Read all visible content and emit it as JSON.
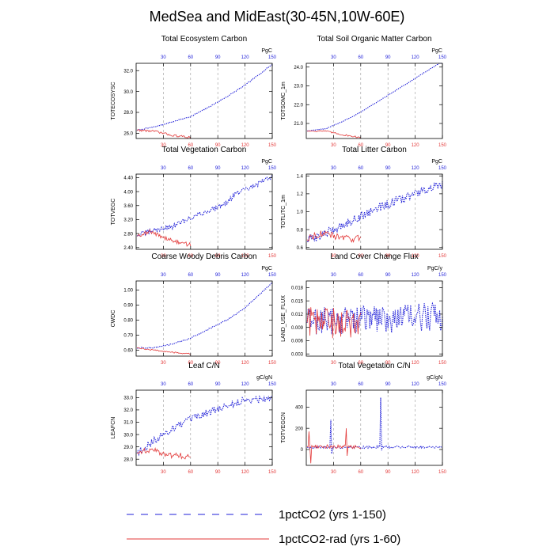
{
  "figure": {
    "title": "MedSea and MidEast(30-45N,10W-60E)",
    "legend": [
      {
        "label": "1pctCO2 (yrs 1-150)",
        "color": "#1f1fd8",
        "style": "dashed"
      },
      {
        "label": "1pctCO2-rad (yrs 1-60)",
        "color": "#e33a3a",
        "style": "solid"
      }
    ]
  },
  "colors": {
    "series_a": "#1f1fd8",
    "series_b": "#e33a3a",
    "grid": "#9a9a9a",
    "axis": "#000000"
  },
  "chart_data": [
    {
      "type": "line",
      "title": "Total Ecosystem Carbon",
      "ylabel": "TOTECOSYSC",
      "unit": "PgC",
      "xlim": [
        0,
        150
      ],
      "ylim": [
        25.5,
        32.7
      ],
      "yticks": [
        26.0,
        28.0,
        30.0,
        32.0
      ],
      "ytick_labels": [
        "26.0",
        "28.0",
        "30.0",
        "32.0"
      ],
      "xticks": [
        30,
        60,
        90,
        120,
        150
      ],
      "series": [
        {
          "name": "1pctCO2 (yrs 1-150)",
          "x_range": [
            1,
            150
          ],
          "anchors": [
            [
              1,
              26.3
            ],
            [
              20,
              26.6
            ],
            [
              40,
              27.1
            ],
            [
              60,
              27.6
            ],
            [
              80,
              28.5
            ],
            [
              100,
              29.5
            ],
            [
              120,
              30.6
            ],
            [
              150,
              32.6
            ]
          ],
          "noise": 0.05
        },
        {
          "name": "1pctCO2-rad (yrs 1-60)",
          "x_range": [
            1,
            60
          ],
          "anchors": [
            [
              1,
              26.3
            ],
            [
              20,
              26.2
            ],
            [
              40,
              25.8
            ],
            [
              60,
              25.6
            ]
          ],
          "noise": 0.1
        }
      ]
    },
    {
      "type": "line",
      "title": "Total Soil Organic Matter Carbon",
      "ylabel": "TOTSOMC_1m",
      "unit": "PgC",
      "xlim": [
        0,
        150
      ],
      "ylim": [
        20.2,
        24.2
      ],
      "yticks": [
        21.0,
        22.0,
        23.0,
        24.0
      ],
      "ytick_labels": [
        "21.0",
        "22.0",
        "23.0",
        "24.0"
      ],
      "xticks": [
        30,
        60,
        90,
        120,
        150
      ],
      "series": [
        {
          "name": "1pctCO2 (yrs 1-150)",
          "x_range": [
            1,
            150
          ],
          "anchors": [
            [
              1,
              20.6
            ],
            [
              20,
              20.7
            ],
            [
              40,
              21.1
            ],
            [
              60,
              21.6
            ],
            [
              80,
              22.2
            ],
            [
              100,
              22.8
            ],
            [
              120,
              23.4
            ],
            [
              150,
              24.3
            ]
          ],
          "noise": 0.02
        },
        {
          "name": "1pctCO2-rad (yrs 1-60)",
          "x_range": [
            1,
            60
          ],
          "anchors": [
            [
              1,
              20.6
            ],
            [
              20,
              20.6
            ],
            [
              40,
              20.4
            ],
            [
              60,
              20.25
            ]
          ],
          "noise": 0.04
        }
      ]
    },
    {
      "type": "line",
      "title": "Total Vegetation Carbon",
      "ylabel": "TOTVEGC",
      "unit": "PgC",
      "xlim": [
        0,
        150
      ],
      "ylim": [
        2.35,
        4.5
      ],
      "yticks": [
        2.4,
        2.8,
        3.2,
        3.6,
        4.0,
        4.4
      ],
      "ytick_labels": [
        "2.40",
        "2.80",
        "3.20",
        "3.60",
        "4.00",
        "4.40"
      ],
      "xticks": [
        30,
        60,
        90,
        120,
        150
      ],
      "series": [
        {
          "name": "1pctCO2 (yrs 1-150)",
          "x_range": [
            1,
            150
          ],
          "anchors": [
            [
              1,
              2.75
            ],
            [
              20,
              2.9
            ],
            [
              40,
              3.0
            ],
            [
              60,
              3.25
            ],
            [
              80,
              3.45
            ],
            [
              100,
              3.7
            ],
            [
              110,
              3.95
            ],
            [
              130,
              4.15
            ],
            [
              150,
              4.45
            ]
          ],
          "noise": 0.07
        },
        {
          "name": "1pctCO2-rad (yrs 1-60)",
          "x_range": [
            1,
            60
          ],
          "anchors": [
            [
              1,
              2.75
            ],
            [
              15,
              2.85
            ],
            [
              30,
              2.7
            ],
            [
              45,
              2.55
            ],
            [
              60,
              2.48
            ]
          ],
          "noise": 0.06
        }
      ]
    },
    {
      "type": "line",
      "title": "Total Litter Carbon",
      "ylabel": "TOTLITC_1m",
      "unit": "PgC",
      "xlim": [
        0,
        150
      ],
      "ylim": [
        0.58,
        1.42
      ],
      "yticks": [
        0.6,
        0.8,
        1.0,
        1.2,
        1.4
      ],
      "ytick_labels": [
        "0.6",
        "0.8",
        "1.0",
        "1.2",
        "1.4"
      ],
      "xticks": [
        30,
        60,
        90,
        120,
        150
      ],
      "series": [
        {
          "name": "1pctCO2 (yrs 1-150)",
          "x_range": [
            1,
            150
          ],
          "anchors": [
            [
              1,
              0.68
            ],
            [
              20,
              0.75
            ],
            [
              40,
              0.85
            ],
            [
              60,
              0.95
            ],
            [
              80,
              1.05
            ],
            [
              100,
              1.12
            ],
            [
              120,
              1.2
            ],
            [
              150,
              1.3
            ]
          ],
          "noise": 0.05
        },
        {
          "name": "1pctCO2-rad (yrs 1-60)",
          "x_range": [
            1,
            60
          ],
          "anchors": [
            [
              1,
              0.7
            ],
            [
              15,
              0.76
            ],
            [
              30,
              0.73
            ],
            [
              45,
              0.7
            ],
            [
              60,
              0.7
            ]
          ],
          "noise": 0.04
        }
      ]
    },
    {
      "type": "line",
      "title": "Coarse Woody Debris Carbon",
      "ylabel": "CWDC",
      "unit": "PgC",
      "xlim": [
        0,
        150
      ],
      "ylim": [
        0.56,
        1.06
      ],
      "yticks": [
        0.6,
        0.7,
        0.8,
        0.9,
        1.0
      ],
      "ytick_labels": [
        "0.60",
        "0.70",
        "0.80",
        "0.90",
        "1.00"
      ],
      "xticks": [
        30,
        60,
        90,
        120,
        150
      ],
      "series": [
        {
          "name": "1pctCO2 (yrs 1-150)",
          "x_range": [
            1,
            150
          ],
          "anchors": [
            [
              1,
              0.615
            ],
            [
              20,
              0.615
            ],
            [
              40,
              0.64
            ],
            [
              60,
              0.68
            ],
            [
              80,
              0.74
            ],
            [
              100,
              0.8
            ],
            [
              120,
              0.88
            ],
            [
              150,
              1.05
            ]
          ],
          "noise": 0.004
        },
        {
          "name": "1pctCO2-rad (yrs 1-60)",
          "x_range": [
            1,
            60
          ],
          "anchors": [
            [
              1,
              0.615
            ],
            [
              20,
              0.6
            ],
            [
              40,
              0.585
            ],
            [
              60,
              0.575
            ]
          ],
          "noise": 0.004
        }
      ]
    },
    {
      "type": "line",
      "title": "Land Cover Change Flux",
      "ylabel": "LAND_USE_FLUX",
      "unit": "PgC/y",
      "xlim": [
        0,
        150
      ],
      "ylim": [
        0.0025,
        0.0195
      ],
      "yticks": [
        0.003,
        0.006,
        0.009,
        0.012,
        0.015,
        0.018
      ],
      "ytick_labels": [
        "0.003",
        "0.006",
        "0.009",
        "0.012",
        "0.015",
        "0.018"
      ],
      "xticks": [
        30,
        60,
        90,
        120,
        150
      ],
      "series": [
        {
          "name": "1pctCO2 (yrs 1-150)",
          "x_range": [
            1,
            150
          ],
          "anchors": [
            [
              1,
              0.0105
            ],
            [
              150,
              0.0115
            ]
          ],
          "noise": 0.0033
        },
        {
          "name": "1pctCO2-rad (yrs 1-60)",
          "x_range": [
            1,
            60
          ],
          "anchors": [
            [
              1,
              0.0105
            ],
            [
              60,
              0.0095
            ]
          ],
          "noise": 0.0035
        }
      ]
    },
    {
      "type": "line",
      "title": "Leaf C/N",
      "ylabel": "LEAFCN",
      "unit": "gC/gN",
      "xlim": [
        0,
        150
      ],
      "ylim": [
        27.5,
        33.6
      ],
      "yticks": [
        28.0,
        29.0,
        30.0,
        31.0,
        32.0,
        33.0
      ],
      "ytick_labels": [
        "28.0",
        "29.0",
        "30.0",
        "31.0",
        "32.0",
        "33.0"
      ],
      "xticks": [
        30,
        60,
        90,
        120,
        150
      ],
      "series": [
        {
          "name": "1pctCO2 (yrs 1-150)",
          "x_range": [
            1,
            150
          ],
          "anchors": [
            [
              1,
              28.5
            ],
            [
              20,
              29.5
            ],
            [
              40,
              30.5
            ],
            [
              60,
              31.2
            ],
            [
              80,
              31.8
            ],
            [
              100,
              32.3
            ],
            [
              120,
              32.8
            ],
            [
              150,
              33.0
            ]
          ],
          "noise": 0.3
        },
        {
          "name": "1pctCO2-rad (yrs 1-60)",
          "x_range": [
            1,
            60
          ],
          "anchors": [
            [
              1,
              28.5
            ],
            [
              15,
              28.8
            ],
            [
              30,
              28.4
            ],
            [
              45,
              28.3
            ],
            [
              60,
              28.2
            ]
          ],
          "noise": 0.25
        }
      ]
    },
    {
      "type": "line",
      "title": "Total Vegetation C/N",
      "ylabel": "TOTVEGCN",
      "unit": "gC/gN",
      "xlim": [
        0,
        150
      ],
      "ylim": [
        -150,
        560
      ],
      "yticks": [
        0,
        200,
        400
      ],
      "ytick_labels": [
        "0",
        "200",
        "400"
      ],
      "xticks": [
        30,
        60,
        90,
        120,
        150
      ],
      "series": [
        {
          "name": "1pctCO2 (yrs 1-150)",
          "x_range": [
            1,
            150
          ],
          "anchors": [
            [
              1,
              20
            ],
            [
              150,
              25
            ]
          ],
          "noise": 12,
          "spikes": [
            [
              27,
              280
            ],
            [
              28,
              -40
            ],
            [
              82,
              490
            ],
            [
              83,
              -10
            ]
          ]
        },
        {
          "name": "1pctCO2-rad (yrs 1-60)",
          "x_range": [
            1,
            60
          ],
          "anchors": [
            [
              1,
              30
            ],
            [
              60,
              25
            ]
          ],
          "noise": 18,
          "spikes": [
            [
              3,
              170
            ],
            [
              5,
              -130
            ],
            [
              44,
              200
            ],
            [
              45,
              -60
            ]
          ]
        }
      ]
    }
  ]
}
